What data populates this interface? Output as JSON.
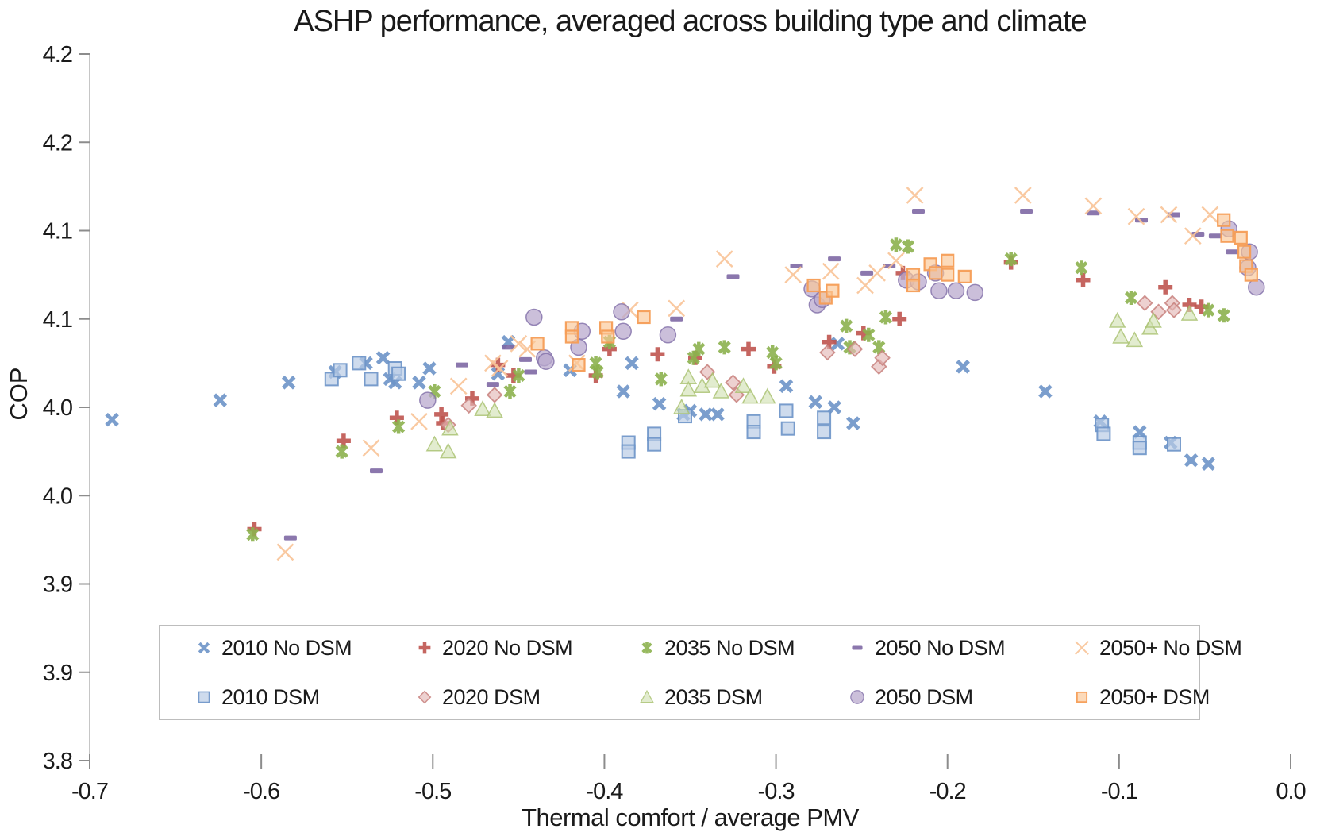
{
  "title": "ASHP performance, averaged across building type and climate",
  "x_axis": {
    "label": "Thermal comfort / average PMV",
    "tick_labels": [
      "-0.7",
      "-0.6",
      "-0.5",
      "-0.4",
      "-0.3",
      "-0.2",
      "-0.1",
      "0.0"
    ],
    "tick_values": [
      -0.7,
      -0.6,
      -0.5,
      -0.4,
      -0.3,
      -0.2,
      -0.1,
      0.0
    ],
    "range": [
      -0.7,
      0.0
    ]
  },
  "y_axis": {
    "label": "COP",
    "tick_labels": [
      "4.2",
      "4.2",
      "4.1",
      "4.1",
      "4.0",
      "4.0",
      "3.9",
      "3.9",
      "3.8"
    ],
    "tick_values": [
      4.2,
      4.15,
      4.1,
      4.05,
      4.0,
      3.95,
      3.9,
      3.85,
      3.8
    ],
    "range": [
      3.8,
      4.2
    ]
  },
  "colors": {
    "blue": "#6d93c8",
    "blue_fill": "#b9cce6",
    "red": "#bf544f",
    "red_light": "#c8817e",
    "red_fill": "#e3b8b7",
    "green": "#8cb14e",
    "green_light": "#a7c06e",
    "green_fill": "#cfdfaf",
    "purple": "#7e68a4",
    "purple_light": "#8674ab",
    "purple_fill": "#b9aace",
    "orange": "#f59d56",
    "orange_thin": "#f8c397",
    "orange_fill": "#fac695",
    "axis_line": "#c6c6c6",
    "tick_mark": "#8c8c8c",
    "text": "#1a1a1a"
  },
  "chart_data": {
    "type": "scatter",
    "xlim": [
      -0.7,
      0.0
    ],
    "ylim": [
      3.8,
      4.2
    ],
    "grid": false,
    "legend_position": "bottom-inside",
    "series": [
      {
        "name": "2010 No DSM",
        "marker": "x-bold",
        "color": "#6d93c8",
        "fill": "none",
        "points": [
          [
            -0.687,
            3.993
          ],
          [
            -0.624,
            4.004
          ],
          [
            -0.584,
            4.014
          ],
          [
            -0.557,
            4.02
          ],
          [
            -0.539,
            4.025
          ],
          [
            -0.529,
            4.028
          ],
          [
            -0.525,
            4.016
          ],
          [
            -0.522,
            4.014
          ],
          [
            -0.508,
            4.014
          ],
          [
            -0.502,
            4.022
          ],
          [
            -0.462,
            4.019
          ],
          [
            -0.456,
            4.037
          ],
          [
            -0.42,
            4.021
          ],
          [
            -0.389,
            4.009
          ],
          [
            -0.384,
            4.025
          ],
          [
            -0.368,
            4.002
          ],
          [
            -0.354,
            3.996
          ],
          [
            -0.35,
            3.998
          ],
          [
            -0.341,
            3.996
          ],
          [
            -0.334,
            3.996
          ],
          [
            -0.294,
            4.012
          ],
          [
            -0.277,
            4.003
          ],
          [
            -0.266,
            4.0
          ],
          [
            -0.264,
            4.036
          ],
          [
            -0.255,
            3.991
          ],
          [
            -0.191,
            4.023
          ],
          [
            -0.143,
            4.009
          ],
          [
            -0.111,
            3.992
          ],
          [
            -0.088,
            3.986
          ],
          [
            -0.07,
            3.98
          ],
          [
            -0.058,
            3.97
          ],
          [
            -0.048,
            3.968
          ]
        ]
      },
      {
        "name": "2020 No DSM",
        "marker": "plus-bold",
        "color": "#bf544f",
        "fill": "none",
        "points": [
          [
            -0.604,
            3.931
          ],
          [
            -0.552,
            3.981
          ],
          [
            -0.521,
            3.994
          ],
          [
            -0.495,
            3.996
          ],
          [
            -0.494,
            3.991
          ],
          [
            -0.477,
            4.005
          ],
          [
            -0.462,
            4.024
          ],
          [
            -0.453,
            4.018
          ],
          [
            -0.405,
            4.018
          ],
          [
            -0.397,
            4.033
          ],
          [
            -0.369,
            4.03
          ],
          [
            -0.347,
            4.028
          ],
          [
            -0.316,
            4.033
          ],
          [
            -0.301,
            4.023
          ],
          [
            -0.269,
            4.037
          ],
          [
            -0.249,
            4.042
          ],
          [
            -0.228,
            4.05
          ],
          [
            -0.226,
            4.076
          ],
          [
            -0.163,
            4.082
          ],
          [
            -0.121,
            4.072
          ],
          [
            -0.073,
            4.068
          ],
          [
            -0.059,
            4.058
          ],
          [
            -0.052,
            4.057
          ]
        ]
      },
      {
        "name": "2035 No DSM",
        "marker": "asterisk",
        "color": "#8cb14e",
        "fill": "none",
        "points": [
          [
            -0.605,
            3.928
          ],
          [
            -0.553,
            3.975
          ],
          [
            -0.52,
            3.989
          ],
          [
            -0.499,
            4.009
          ],
          [
            -0.455,
            4.009
          ],
          [
            -0.45,
            4.018
          ],
          [
            -0.405,
            4.025
          ],
          [
            -0.404,
            4.02
          ],
          [
            -0.397,
            4.037
          ],
          [
            -0.367,
            4.016
          ],
          [
            -0.348,
            4.028
          ],
          [
            -0.345,
            4.033
          ],
          [
            -0.33,
            4.034
          ],
          [
            -0.302,
            4.031
          ],
          [
            -0.3,
            4.025
          ],
          [
            -0.259,
            4.046
          ],
          [
            -0.257,
            4.034
          ],
          [
            -0.246,
            4.041
          ],
          [
            -0.24,
            4.034
          ],
          [
            -0.236,
            4.051
          ],
          [
            -0.23,
            4.092
          ],
          [
            -0.223,
            4.091
          ],
          [
            -0.163,
            4.084
          ],
          [
            -0.122,
            4.079
          ],
          [
            -0.093,
            4.062
          ],
          [
            -0.048,
            4.055
          ],
          [
            -0.039,
            4.052
          ]
        ]
      },
      {
        "name": "2050 No DSM",
        "marker": "dash",
        "color": "#7e68a4",
        "fill": "#7e68a4",
        "points": [
          [
            -0.583,
            3.926
          ],
          [
            -0.533,
            3.964
          ],
          [
            -0.483,
            4.024
          ],
          [
            -0.465,
            4.013
          ],
          [
            -0.456,
            4.034
          ],
          [
            -0.446,
            4.027
          ],
          [
            -0.443,
            4.02
          ],
          [
            -0.358,
            4.05
          ],
          [
            -0.325,
            4.074
          ],
          [
            -0.288,
            4.08
          ],
          [
            -0.266,
            4.084
          ],
          [
            -0.247,
            4.076
          ],
          [
            -0.234,
            4.08
          ],
          [
            -0.217,
            4.111
          ],
          [
            -0.154,
            4.111
          ],
          [
            -0.115,
            4.11
          ],
          [
            -0.087,
            4.106
          ],
          [
            -0.068,
            4.109
          ],
          [
            -0.054,
            4.098
          ],
          [
            -0.044,
            4.097
          ],
          [
            -0.034,
            4.088
          ]
        ]
      },
      {
        "name": "2050+ No DSM",
        "marker": "x-thin",
        "color": "#f8c397",
        "fill": "none",
        "points": [
          [
            -0.586,
            3.918
          ],
          [
            -0.536,
            3.977
          ],
          [
            -0.508,
            3.992
          ],
          [
            -0.485,
            4.012
          ],
          [
            -0.465,
            4.025
          ],
          [
            -0.461,
            4.022
          ],
          [
            -0.45,
            4.036
          ],
          [
            -0.445,
            4.033
          ],
          [
            -0.416,
            4.025
          ],
          [
            -0.385,
            4.055
          ],
          [
            -0.358,
            4.056
          ],
          [
            -0.33,
            4.084
          ],
          [
            -0.29,
            4.075
          ],
          [
            -0.268,
            4.077
          ],
          [
            -0.248,
            4.069
          ],
          [
            -0.241,
            4.076
          ],
          [
            -0.23,
            4.083
          ],
          [
            -0.219,
            4.12
          ],
          [
            -0.156,
            4.12
          ],
          [
            -0.115,
            4.114
          ],
          [
            -0.09,
            4.108
          ],
          [
            -0.071,
            4.109
          ],
          [
            -0.057,
            4.097
          ],
          [
            -0.047,
            4.109
          ]
        ]
      },
      {
        "name": "2010 DSM",
        "marker": "square",
        "color": "#6d93c8",
        "fill": "#b9cce6",
        "points": [
          [
            -0.559,
            4.016
          ],
          [
            -0.554,
            4.021
          ],
          [
            -0.543,
            4.025
          ],
          [
            -0.536,
            4.016
          ],
          [
            -0.522,
            4.022
          ],
          [
            -0.52,
            4.019
          ],
          [
            -0.386,
            3.98
          ],
          [
            -0.386,
            3.975
          ],
          [
            -0.371,
            3.985
          ],
          [
            -0.371,
            3.979
          ],
          [
            -0.353,
            3.995
          ],
          [
            -0.313,
            3.992
          ],
          [
            -0.313,
            3.986
          ],
          [
            -0.294,
            3.998
          ],
          [
            -0.293,
            3.988
          ],
          [
            -0.272,
            3.994
          ],
          [
            -0.272,
            3.986
          ],
          [
            -0.11,
            3.99
          ],
          [
            -0.109,
            3.985
          ],
          [
            -0.088,
            3.98
          ],
          [
            -0.088,
            3.977
          ],
          [
            -0.068,
            3.979
          ]
        ]
      },
      {
        "name": "2020 DSM",
        "marker": "diamond",
        "color": "#c8817e",
        "fill": "#e3b8b7",
        "points": [
          [
            -0.491,
            3.99
          ],
          [
            -0.479,
            4.001
          ],
          [
            -0.464,
            4.007
          ],
          [
            -0.34,
            4.02
          ],
          [
            -0.325,
            4.014
          ],
          [
            -0.323,
            4.007
          ],
          [
            -0.27,
            4.031
          ],
          [
            -0.254,
            4.033
          ],
          [
            -0.24,
            4.023
          ],
          [
            -0.238,
            4.028
          ],
          [
            -0.085,
            4.059
          ],
          [
            -0.077,
            4.054
          ],
          [
            -0.069,
            4.059
          ],
          [
            -0.068,
            4.055
          ]
        ]
      },
      {
        "name": "2035 DSM",
        "marker": "triangle",
        "color": "#a7c06e",
        "fill": "#cfdfaf",
        "points": [
          [
            -0.499,
            3.979
          ],
          [
            -0.491,
            3.975
          ],
          [
            -0.49,
            3.988
          ],
          [
            -0.471,
            3.999
          ],
          [
            -0.464,
            3.998
          ],
          [
            -0.355,
            4.0
          ],
          [
            -0.351,
            4.017
          ],
          [
            -0.351,
            4.01
          ],
          [
            -0.343,
            4.012
          ],
          [
            -0.337,
            4.015
          ],
          [
            -0.332,
            4.009
          ],
          [
            -0.319,
            4.012
          ],
          [
            -0.315,
            4.006
          ],
          [
            -0.305,
            4.006
          ],
          [
            -0.101,
            4.049
          ],
          [
            -0.099,
            4.04
          ],
          [
            -0.091,
            4.038
          ],
          [
            -0.082,
            4.045
          ],
          [
            -0.08,
            4.049
          ],
          [
            -0.059,
            4.053
          ]
        ]
      },
      {
        "name": "2050 DSM",
        "marker": "circle",
        "color": "#8674ab",
        "fill": "#b9aace",
        "points": [
          [
            -0.503,
            4.004
          ],
          [
            -0.441,
            4.051
          ],
          [
            -0.435,
            4.028
          ],
          [
            -0.434,
            4.026
          ],
          [
            -0.415,
            4.034
          ],
          [
            -0.413,
            4.043
          ],
          [
            -0.39,
            4.054
          ],
          [
            -0.389,
            4.043
          ],
          [
            -0.363,
            4.041
          ],
          [
            -0.279,
            4.067
          ],
          [
            -0.276,
            4.058
          ],
          [
            -0.273,
            4.061
          ],
          [
            -0.224,
            4.072
          ],
          [
            -0.217,
            4.071
          ],
          [
            -0.207,
            4.076
          ],
          [
            -0.205,
            4.066
          ],
          [
            -0.195,
            4.066
          ],
          [
            -0.184,
            4.065
          ],
          [
            -0.036,
            4.101
          ],
          [
            -0.025,
            4.079
          ],
          [
            -0.024,
            4.088
          ],
          [
            -0.02,
            4.068
          ]
        ]
      },
      {
        "name": "2050+ DSM",
        "marker": "square-sm",
        "color": "#f59d56",
        "fill": "#fac695",
        "points": [
          [
            -0.439,
            4.036
          ],
          [
            -0.419,
            4.045
          ],
          [
            -0.419,
            4.04
          ],
          [
            -0.415,
            4.024
          ],
          [
            -0.399,
            4.045
          ],
          [
            -0.398,
            4.04
          ],
          [
            -0.377,
            4.051
          ],
          [
            -0.278,
            4.069
          ],
          [
            -0.271,
            4.062
          ],
          [
            -0.267,
            4.066
          ],
          [
            -0.22,
            4.075
          ],
          [
            -0.22,
            4.069
          ],
          [
            -0.21,
            4.081
          ],
          [
            -0.207,
            4.076
          ],
          [
            -0.2,
            4.083
          ],
          [
            -0.2,
            4.075
          ],
          [
            -0.19,
            4.074
          ],
          [
            -0.039,
            4.106
          ],
          [
            -0.037,
            4.097
          ],
          [
            -0.029,
            4.096
          ],
          [
            -0.027,
            4.088
          ],
          [
            -0.026,
            4.08
          ],
          [
            -0.023,
            4.075
          ]
        ]
      }
    ]
  },
  "legend": {
    "rows": [
      [
        "2010 No DSM",
        "2020 No DSM",
        "2035 No DSM",
        "2050 No DSM",
        "2050+ No DSM"
      ],
      [
        "2010 DSM",
        "2020 DSM",
        "2035 DSM",
        "2050 DSM",
        "2050+ DSM"
      ]
    ]
  }
}
